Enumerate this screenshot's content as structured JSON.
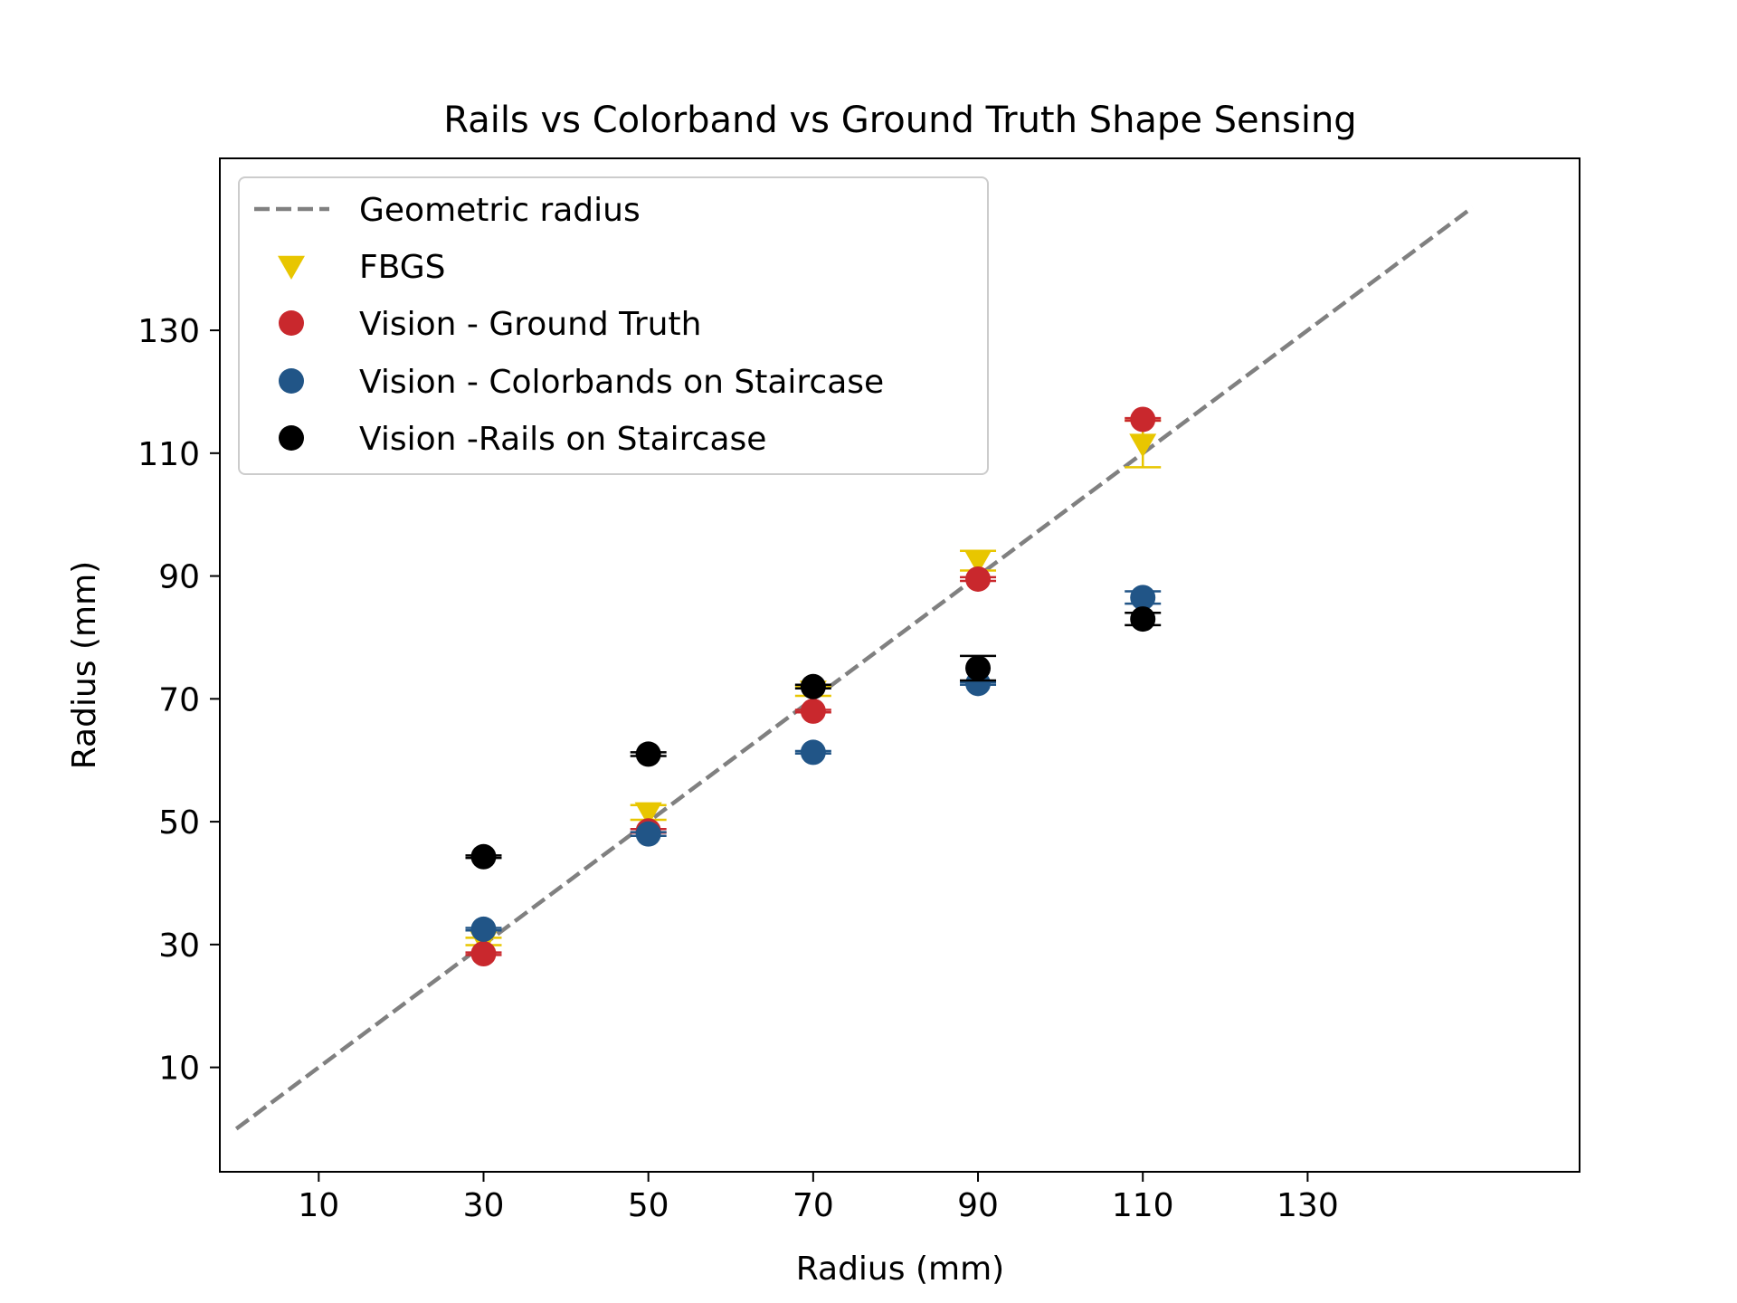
{
  "chart_data": {
    "type": "scatter",
    "title": "Rails vs Colorband vs Ground Truth Shape Sensing",
    "xlabel": "Radius (mm)",
    "ylabel": "Radius (mm)",
    "xlim": [
      -2,
      163
    ],
    "ylim": [
      -7,
      158
    ],
    "xticks": [
      10,
      30,
      50,
      70,
      90,
      110,
      130
    ],
    "yticks": [
      10,
      30,
      50,
      70,
      90,
      110,
      130
    ],
    "grid": false,
    "legend_position": "top-left",
    "reference_line": {
      "name": "Geometric radius",
      "x": [
        0,
        150
      ],
      "y": [
        0,
        150
      ],
      "color": "#808080",
      "style": "dashed"
    },
    "series": [
      {
        "name": "FBGS",
        "marker": "triangle-down",
        "color": "#e8c600",
        "x": [
          30,
          50,
          70,
          90,
          110
        ],
        "y": [
          30.5,
          51.5,
          71.3,
          92.5,
          111.5
        ],
        "err": [
          0.6,
          1.2,
          0.8,
          1.6,
          3.8
        ]
      },
      {
        "name": "Vision - Ground Truth",
        "marker": "circle",
        "color": "#c9282d",
        "x": [
          30,
          50,
          70,
          90,
          110
        ],
        "y": [
          28.5,
          48.5,
          68.0,
          89.5,
          115.5
        ],
        "err": [
          0.2,
          0.3,
          0.2,
          0.3,
          0.2
        ]
      },
      {
        "name": "Vision - Colorbands on Staircase",
        "marker": "circle",
        "color": "#215587",
        "x": [
          30,
          50,
          70,
          90,
          110
        ],
        "y": [
          32.5,
          48.0,
          61.3,
          72.5,
          86.5
        ],
        "err": [
          0.2,
          0.3,
          0.2,
          0.2,
          1.0
        ]
      },
      {
        "name": "Vision -Rails on Staircase",
        "marker": "circle",
        "color": "#000000",
        "x": [
          30,
          50,
          70,
          90,
          110
        ],
        "y": [
          44.3,
          61.0,
          72.0,
          75.0,
          83.0
        ],
        "err": [
          0.2,
          0.3,
          0.3,
          2.0,
          1.0
        ]
      }
    ]
  }
}
